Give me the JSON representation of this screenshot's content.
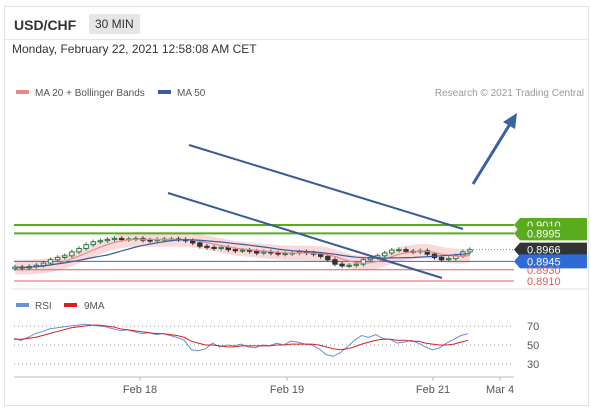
{
  "header": {
    "symbol": "USD/CHF",
    "timeframe": "30 MIN"
  },
  "datetime": "Monday, February 22, 2021 12:58:08 AM CET",
  "legend": {
    "ma20_label": "MA 20 + Bollinger Bands",
    "ma50_label": "MA 50",
    "credit": "Research © 2021 Trading Central"
  },
  "colors": {
    "resistance": "#5aab1e",
    "support": "#2e6bd6",
    "minor_support": "#e85a5a",
    "price_tag": "#333333",
    "ma20": "#e88888",
    "ma50": "#3b5c9e",
    "bollinger_fill": "#f8d4d4",
    "channel": "#3a5a96",
    "arrow": "#3a62a0",
    "rsi": "#6b8fd8",
    "rsi_ma": "#d92020",
    "candle_up": "#2a7a4a",
    "candle_down": "#333333"
  },
  "chart_data": {
    "type": "candlestick",
    "price_levels": [
      {
        "value": 0.901,
        "label": "0.9010",
        "kind": "resistance"
      },
      {
        "value": 0.8995,
        "label": "0.8995",
        "kind": "resistance"
      },
      {
        "value": 0.8966,
        "label": "0.8966",
        "kind": "current"
      },
      {
        "value": 0.8945,
        "label": "0.8945",
        "kind": "support"
      },
      {
        "value": 0.893,
        "label": "0.8930",
        "kind": "minor-support"
      },
      {
        "value": 0.891,
        "label": "0.8910",
        "kind": "minor-support"
      }
    ],
    "x_ticks": [
      "Feb 18",
      "Feb 19",
      "Feb 21",
      "Mar 4"
    ],
    "rsi": {
      "legend": "RSI",
      "ma_legend": "9MA",
      "levels": [
        70,
        50,
        30
      ],
      "labels": [
        "70",
        "50",
        "30"
      ]
    },
    "close_series": [
      0.8935,
      0.8933,
      0.8936,
      0.8938,
      0.8942,
      0.8948,
      0.8952,
      0.8955,
      0.8962,
      0.8968,
      0.8975,
      0.898,
      0.8982,
      0.8984,
      0.8986,
      0.8984,
      0.8985,
      0.8986,
      0.8983,
      0.8982,
      0.8984,
      0.8985,
      0.8985,
      0.8984,
      0.8982,
      0.8978,
      0.8972,
      0.897,
      0.8968,
      0.897,
      0.8966,
      0.8964,
      0.8965,
      0.8963,
      0.896,
      0.8962,
      0.896,
      0.8958,
      0.8959,
      0.896,
      0.8962,
      0.896,
      0.8958,
      0.8954,
      0.8948,
      0.894,
      0.8937,
      0.8938,
      0.894,
      0.8948,
      0.8952,
      0.8955,
      0.896,
      0.8965,
      0.8966,
      0.8963,
      0.8962,
      0.8964,
      0.8958,
      0.8952,
      0.8948,
      0.895,
      0.8955,
      0.8962,
      0.8966
    ],
    "rsi_series": [
      57,
      55,
      58,
      62,
      64,
      67,
      68,
      69,
      70,
      71,
      72,
      71,
      70,
      69,
      67,
      65,
      66,
      64,
      62,
      63,
      61,
      62,
      60,
      58,
      55,
      45,
      44,
      46,
      52,
      48,
      50,
      49,
      51,
      48,
      47,
      50,
      49,
      52,
      50,
      54,
      53,
      51,
      50,
      46,
      40,
      38,
      42,
      48,
      55,
      60,
      58,
      61,
      57,
      56,
      52,
      53,
      55,
      52,
      48,
      45,
      47,
      52,
      56,
      60,
      62
    ],
    "rsi_ma_series": [
      56,
      56,
      57,
      58,
      60,
      62,
      64,
      66,
      68,
      69,
      70,
      71,
      71,
      70,
      69,
      67,
      66,
      65,
      64,
      63,
      62,
      62,
      61,
      60,
      58,
      54,
      52,
      50,
      50,
      49,
      48,
      48,
      49,
      49,
      49,
      49,
      49,
      50,
      50,
      51,
      51,
      51,
      51,
      50,
      48,
      46,
      45,
      46,
      48,
      51,
      53,
      55,
      56,
      56,
      55,
      55,
      54,
      54,
      52,
      51,
      50,
      50,
      51,
      53,
      55
    ]
  }
}
